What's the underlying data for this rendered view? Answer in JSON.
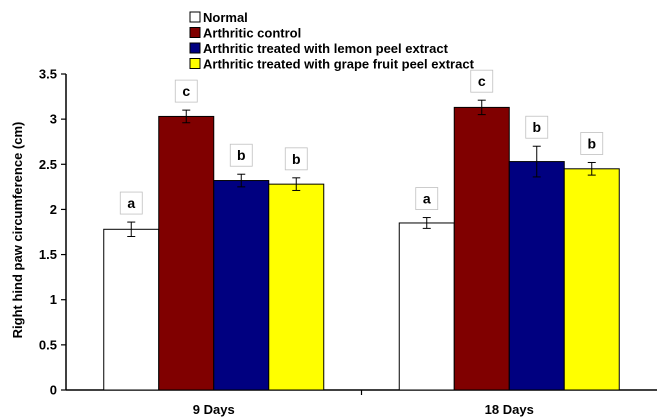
{
  "chart_data": {
    "type": "bar",
    "title": "",
    "xlabel": "",
    "ylabel": "Right hind paw circumference (cm)",
    "categories": [
      "9 Days",
      "18 Days"
    ],
    "ylim": [
      0,
      3.5
    ],
    "yticks": [
      "0",
      "0.5",
      "1",
      "1.5",
      "2",
      "2.5",
      "3",
      "3.5"
    ],
    "grid": false,
    "legend_position": "top-left",
    "series": [
      {
        "name": "Normal",
        "color": "#ffffff",
        "values": [
          1.78,
          1.85
        ],
        "errors": [
          0.08,
          0.06
        ],
        "labels": [
          "a",
          "a"
        ]
      },
      {
        "name": "Arthritic control",
        "color": "#800000",
        "values": [
          3.03,
          3.13
        ],
        "errors": [
          0.07,
          0.08
        ],
        "labels": [
          "c",
          "c"
        ]
      },
      {
        "name": "Arthritic treated with lemon peel extract",
        "color": "#000080",
        "values": [
          2.32,
          2.53
        ],
        "errors": [
          0.07,
          0.17
        ],
        "labels": [
          "b",
          "b"
        ]
      },
      {
        "name": "Arthritic treated with grape fruit peel extract",
        "color": "#ffff00",
        "values": [
          2.28,
          2.45
        ],
        "errors": [
          0.07,
          0.07
        ],
        "labels": [
          "b",
          "b"
        ]
      }
    ]
  }
}
